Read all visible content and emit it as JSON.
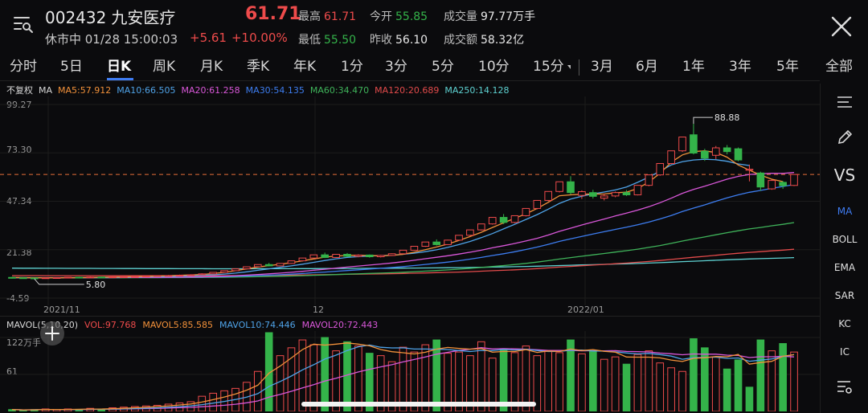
{
  "header": {
    "code": "002432",
    "name": "九安医疗",
    "status": "休市中 01/28 15:00:03",
    "price": "61.71",
    "change": "+5.61",
    "change_pct": "+10.00%",
    "stats": [
      {
        "key": "最高",
        "value": "61.71",
        "tone": "red"
      },
      {
        "key": "今开",
        "value": "55.85",
        "tone": "green"
      },
      {
        "key": "成交量",
        "value": "97.77万手",
        "tone": "white"
      },
      {
        "key": "最低",
        "value": "55.50",
        "tone": "green"
      },
      {
        "key": "昨收",
        "value": "56.10",
        "tone": "white"
      },
      {
        "key": "成交额",
        "value": "58.32亿",
        "tone": "white"
      }
    ]
  },
  "tabs": [
    "分时",
    "5日",
    "日K",
    "周K",
    "月K",
    "季K",
    "年K",
    "1分",
    "3分",
    "5分",
    "10分",
    "15分",
    "3月",
    "6月",
    "1年",
    "3年",
    "5年",
    "全部"
  ],
  "active_tab": "日K",
  "ma_legend": {
    "adj": "不复权",
    "ma": "MA",
    "items": [
      {
        "label": "MA5:57.912",
        "color": "#f2913a"
      },
      {
        "label": "MA10:66.505",
        "color": "#4fa3e8"
      },
      {
        "label": "MA20:61.258",
        "color": "#d957d9"
      },
      {
        "label": "MA30:54.135",
        "color": "#3d7df0"
      },
      {
        "label": "MA60:34.470",
        "color": "#3fb35a"
      },
      {
        "label": "MA120:20.689",
        "color": "#e34b4b"
      },
      {
        "label": "MA250:14.128",
        "color": "#5fd3d3"
      }
    ]
  },
  "y_axis": [
    "99.27",
    "73.30",
    "47.34",
    "21.38",
    "-4.59"
  ],
  "x_axis": [
    "2021/11",
    "12",
    "2022/01"
  ],
  "annotations": {
    "high": "88.88",
    "low": "5.80"
  },
  "vol_legend": {
    "title": "MAVOL(5,10,20)",
    "items": [
      {
        "label": "VOL:97.768",
        "color": "#ee4b4b"
      },
      {
        "label": "MAVOL5:85.585",
        "color": "#f2913a"
      },
      {
        "label": "MAVOL10:74.446",
        "color": "#4fa3e8"
      },
      {
        "label": "MAVOL20:72.443",
        "color": "#d957d9"
      }
    ]
  },
  "vol_axis": [
    "122万手",
    "61"
  ],
  "side_buttons": [
    "VS",
    "MA",
    "BOLL",
    "EMA",
    "SAR",
    "KC",
    "IC"
  ],
  "side_active": "MA",
  "colors": {
    "up": "#ee4b4b",
    "down": "#34b34a",
    "accent": "#3f7cf2"
  },
  "chart_data": {
    "type": "candlestick",
    "x_labels": [
      "2021/11",
      "12",
      "2022/01"
    ],
    "ylim": [
      -4.59,
      99.27
    ],
    "reference_price": 61.71,
    "high_label": 88.88,
    "low_label": 5.8,
    "candles": [
      {
        "o": 6.5,
        "c": 6.2,
        "h": 6.8,
        "l": 5.9
      },
      {
        "o": 6.3,
        "c": 6.1,
        "h": 6.5,
        "l": 5.9
      },
      {
        "o": 6.2,
        "c": 6.0,
        "h": 6.4,
        "l": 5.8
      },
      {
        "o": 6.0,
        "c": 6.3,
        "h": 6.5,
        "l": 5.8
      },
      {
        "o": 6.3,
        "c": 6.4,
        "h": 6.6,
        "l": 6.1
      },
      {
        "o": 6.4,
        "c": 6.6,
        "h": 6.8,
        "l": 6.2
      },
      {
        "o": 6.6,
        "c": 6.5,
        "h": 6.9,
        "l": 6.3
      },
      {
        "o": 6.5,
        "c": 6.7,
        "h": 7.0,
        "l": 6.4
      },
      {
        "o": 6.7,
        "c": 6.6,
        "h": 6.9,
        "l": 6.4
      },
      {
        "o": 6.6,
        "c": 6.8,
        "h": 7.0,
        "l": 6.5
      },
      {
        "o": 6.8,
        "c": 6.9,
        "h": 7.1,
        "l": 6.6
      },
      {
        "o": 6.9,
        "c": 7.0,
        "h": 7.2,
        "l": 6.7
      },
      {
        "o": 7.0,
        "c": 7.2,
        "h": 7.4,
        "l": 6.8
      },
      {
        "o": 7.2,
        "c": 7.4,
        "h": 7.6,
        "l": 7.0
      },
      {
        "o": 7.4,
        "c": 7.5,
        "h": 7.8,
        "l": 7.2
      },
      {
        "o": 7.5,
        "c": 7.7,
        "h": 8.0,
        "l": 7.3
      },
      {
        "o": 7.7,
        "c": 7.9,
        "h": 8.2,
        "l": 7.5
      },
      {
        "o": 7.9,
        "c": 8.4,
        "h": 8.7,
        "l": 7.8
      },
      {
        "o": 8.4,
        "c": 9.2,
        "h": 9.3,
        "l": 8.3
      },
      {
        "o": 9.2,
        "c": 10.1,
        "h": 10.2,
        "l": 9.0
      },
      {
        "o": 10.1,
        "c": 11.1,
        "h": 11.2,
        "l": 9.9
      },
      {
        "o": 11.1,
        "c": 12.2,
        "h": 12.3,
        "l": 10.9
      },
      {
        "o": 12.2,
        "c": 13.4,
        "h": 13.5,
        "l": 12.0
      },
      {
        "o": 13.4,
        "c": 12.7,
        "h": 14.3,
        "l": 12.4
      },
      {
        "o": 12.7,
        "c": 14.0,
        "h": 14.1,
        "l": 12.5
      },
      {
        "o": 14.0,
        "c": 15.4,
        "h": 15.5,
        "l": 13.8
      },
      {
        "o": 15.4,
        "c": 16.9,
        "h": 17.0,
        "l": 15.1
      },
      {
        "o": 16.9,
        "c": 18.6,
        "h": 18.7,
        "l": 16.7
      },
      {
        "o": 18.6,
        "c": 17.2,
        "h": 19.8,
        "l": 16.9
      },
      {
        "o": 17.2,
        "c": 18.9,
        "h": 19.1,
        "l": 17.0
      },
      {
        "o": 18.9,
        "c": 17.8,
        "h": 19.6,
        "l": 17.4
      },
      {
        "o": 17.8,
        "c": 18.5,
        "h": 18.9,
        "l": 17.3
      },
      {
        "o": 18.5,
        "c": 17.6,
        "h": 18.8,
        "l": 17.1
      },
      {
        "o": 17.6,
        "c": 18.3,
        "h": 18.6,
        "l": 17.2
      },
      {
        "o": 18.3,
        "c": 19.2,
        "h": 19.4,
        "l": 18.0
      },
      {
        "o": 19.2,
        "c": 21.1,
        "h": 21.2,
        "l": 19.0
      },
      {
        "o": 21.1,
        "c": 23.2,
        "h": 23.3,
        "l": 20.9
      },
      {
        "o": 23.2,
        "c": 25.5,
        "h": 25.6,
        "l": 22.9
      },
      {
        "o": 25.5,
        "c": 24.1,
        "h": 26.9,
        "l": 23.6
      },
      {
        "o": 24.1,
        "c": 26.5,
        "h": 26.7,
        "l": 23.9
      },
      {
        "o": 26.5,
        "c": 29.1,
        "h": 29.2,
        "l": 26.2
      },
      {
        "o": 29.1,
        "c": 32.0,
        "h": 32.1,
        "l": 28.7
      },
      {
        "o": 32.0,
        "c": 35.2,
        "h": 35.3,
        "l": 31.6
      },
      {
        "o": 35.2,
        "c": 38.7,
        "h": 38.8,
        "l": 34.8
      },
      {
        "o": 38.7,
        "c": 36.0,
        "h": 40.5,
        "l": 35.1
      },
      {
        "o": 36.0,
        "c": 39.6,
        "h": 39.8,
        "l": 35.6
      },
      {
        "o": 39.6,
        "c": 43.5,
        "h": 43.6,
        "l": 39.2
      },
      {
        "o": 43.5,
        "c": 47.8,
        "h": 47.9,
        "l": 43.0
      },
      {
        "o": 47.8,
        "c": 52.6,
        "h": 52.7,
        "l": 47.3
      },
      {
        "o": 52.6,
        "c": 57.8,
        "h": 57.9,
        "l": 52.1
      },
      {
        "o": 57.8,
        "c": 52.0,
        "h": 60.8,
        "l": 51.0
      },
      {
        "o": 50.5,
        "c": 52.5,
        "h": 53.2,
        "l": 48.6
      },
      {
        "o": 52.0,
        "c": 50.0,
        "h": 53.5,
        "l": 48.8
      },
      {
        "o": 49.0,
        "c": 50.2,
        "h": 51.5,
        "l": 47.8
      },
      {
        "o": 50.2,
        "c": 52.0,
        "h": 52.6,
        "l": 49.5
      },
      {
        "o": 52.0,
        "c": 50.8,
        "h": 53.4,
        "l": 50.2
      },
      {
        "o": 50.8,
        "c": 55.9,
        "h": 56.0,
        "l": 50.5
      },
      {
        "o": 55.9,
        "c": 61.5,
        "h": 61.6,
        "l": 55.4
      },
      {
        "o": 61.5,
        "c": 67.6,
        "h": 67.7,
        "l": 61.0
      },
      {
        "o": 67.6,
        "c": 74.4,
        "h": 74.5,
        "l": 67.2
      },
      {
        "o": 74.4,
        "c": 81.8,
        "h": 81.9,
        "l": 73.8
      },
      {
        "o": 83.0,
        "c": 73.2,
        "h": 88.88,
        "l": 72.5
      },
      {
        "o": 74.2,
        "c": 70.5,
        "h": 75.5,
        "l": 69.0
      },
      {
        "o": 72.0,
        "c": 76.0,
        "h": 77.0,
        "l": 70.0
      },
      {
        "o": 76.0,
        "c": 74.0,
        "h": 77.5,
        "l": 72.5
      },
      {
        "o": 75.5,
        "c": 69.5,
        "h": 76.2,
        "l": 68.8
      },
      {
        "o": 64.0,
        "c": 64.5,
        "h": 67.0,
        "l": 58.0
      },
      {
        "o": 62.5,
        "c": 55.0,
        "h": 63.2,
        "l": 53.0
      },
      {
        "o": 54.0,
        "c": 58.5,
        "h": 59.0,
        "l": 53.5
      },
      {
        "o": 57.5,
        "c": 55.7,
        "h": 58.2,
        "l": 54.0
      },
      {
        "o": 55.85,
        "c": 61.71,
        "h": 61.71,
        "l": 55.5
      }
    ],
    "volume": [
      {
        "v": 3,
        "up": false
      },
      {
        "v": 2,
        "up": false
      },
      {
        "v": 3,
        "up": false
      },
      {
        "v": 4,
        "up": true
      },
      {
        "v": 3,
        "up": true
      },
      {
        "v": 4,
        "up": true
      },
      {
        "v": 3,
        "up": false
      },
      {
        "v": 5,
        "up": true
      },
      {
        "v": 4,
        "up": false
      },
      {
        "v": 6,
        "up": true
      },
      {
        "v": 7,
        "up": true
      },
      {
        "v": 8,
        "up": true
      },
      {
        "v": 9,
        "up": true
      },
      {
        "v": 10,
        "up": true
      },
      {
        "v": 12,
        "up": true
      },
      {
        "v": 14,
        "up": true
      },
      {
        "v": 16,
        "up": true
      },
      {
        "v": 25,
        "up": true
      },
      {
        "v": 30,
        "up": true
      },
      {
        "v": 34,
        "up": true
      },
      {
        "v": 38,
        "up": true
      },
      {
        "v": 48,
        "up": true
      },
      {
        "v": 66,
        "up": true
      },
      {
        "v": 130,
        "up": false
      },
      {
        "v": 92,
        "up": true
      },
      {
        "v": 105,
        "up": true
      },
      {
        "v": 118,
        "up": true
      },
      {
        "v": 110,
        "up": true
      },
      {
        "v": 122,
        "up": false
      },
      {
        "v": 100,
        "up": true
      },
      {
        "v": 115,
        "up": false
      },
      {
        "v": 108,
        "up": true
      },
      {
        "v": 96,
        "up": false
      },
      {
        "v": 92,
        "up": true
      },
      {
        "v": 82,
        "up": true
      },
      {
        "v": 106,
        "up": true
      },
      {
        "v": 98,
        "up": true
      },
      {
        "v": 110,
        "up": true
      },
      {
        "v": 118,
        "up": false
      },
      {
        "v": 96,
        "up": true
      },
      {
        "v": 98,
        "up": true
      },
      {
        "v": 92,
        "up": true
      },
      {
        "v": 115,
        "up": true
      },
      {
        "v": 88,
        "up": true
      },
      {
        "v": 102,
        "up": false
      },
      {
        "v": 97,
        "up": true
      },
      {
        "v": 108,
        "up": true
      },
      {
        "v": 92,
        "up": true
      },
      {
        "v": 100,
        "up": true
      },
      {
        "v": 97,
        "up": true
      },
      {
        "v": 118,
        "up": false
      },
      {
        "v": 95,
        "up": true
      },
      {
        "v": 100,
        "up": false
      },
      {
        "v": 86,
        "up": true
      },
      {
        "v": 90,
        "up": true
      },
      {
        "v": 78,
        "up": false
      },
      {
        "v": 94,
        "up": true
      },
      {
        "v": 100,
        "up": true
      },
      {
        "v": 80,
        "up": true
      },
      {
        "v": 72,
        "up": true
      },
      {
        "v": 66,
        "up": true
      },
      {
        "v": 120,
        "up": false
      },
      {
        "v": 105,
        "up": false
      },
      {
        "v": 90,
        "up": true
      },
      {
        "v": 70,
        "up": false
      },
      {
        "v": 85,
        "up": false
      },
      {
        "v": 40,
        "up": false
      },
      {
        "v": 118,
        "up": false
      },
      {
        "v": 100,
        "up": true
      },
      {
        "v": 112,
        "up": false
      },
      {
        "v": 98,
        "up": true
      }
    ],
    "ma_lines": {
      "MA5": [
        6.5,
        6.4,
        6.3,
        6.3,
        6.3,
        6.3,
        6.4,
        6.5,
        6.6,
        6.7,
        6.8,
        6.9,
        7.0,
        7.2,
        7.4,
        7.6,
        7.8,
        8.1,
        8.6,
        9.2,
        10.1,
        11.1,
        12.1,
        12.8,
        13.6,
        14.4,
        15.4,
        16.4,
        17.4,
        18.0,
        18.3,
        18.4,
        18.2,
        18.1,
        18.3,
        18.9,
        20.0,
        21.4,
        22.8,
        24.4,
        26.3,
        28.4,
        30.7,
        33.3,
        35.8,
        38.2,
        40.6,
        43.5,
        46.8,
        50.3,
        50.8,
        51.1,
        51.3,
        51.2,
        51.9,
        52.2,
        54.2,
        57.7,
        62.3,
        68.3,
        72.2,
        74.0,
        74.4,
        73.5,
        71.0,
        66.8,
        64.0,
        61.4,
        59.2,
        57.9
      ],
      "MA10": [
        6.4,
        6.4,
        6.4,
        6.4,
        6.4,
        6.4,
        6.4,
        6.4,
        6.5,
        6.5,
        6.6,
        6.7,
        6.8,
        6.9,
        7.0,
        7.2,
        7.4,
        7.6,
        7.9,
        8.3,
        8.8,
        9.5,
        10.3,
        11.1,
        11.9,
        12.7,
        13.6,
        14.6,
        15.6,
        16.5,
        17.2,
        17.7,
        18.0,
        18.2,
        18.4,
        18.9,
        19.5,
        20.3,
        21.3,
        22.6,
        24.1,
        25.8,
        27.8,
        30.0,
        32.5,
        35.0,
        37.6,
        40.2,
        43.1,
        46.2,
        48.5,
        50.0,
        51.3,
        52.3,
        53.4,
        55.0,
        57.5,
        60.3,
        63.5,
        66.8,
        68.6,
        69.5,
        69.9,
        69.6,
        68.8,
        67.4,
        66.5
      ]
    }
  }
}
